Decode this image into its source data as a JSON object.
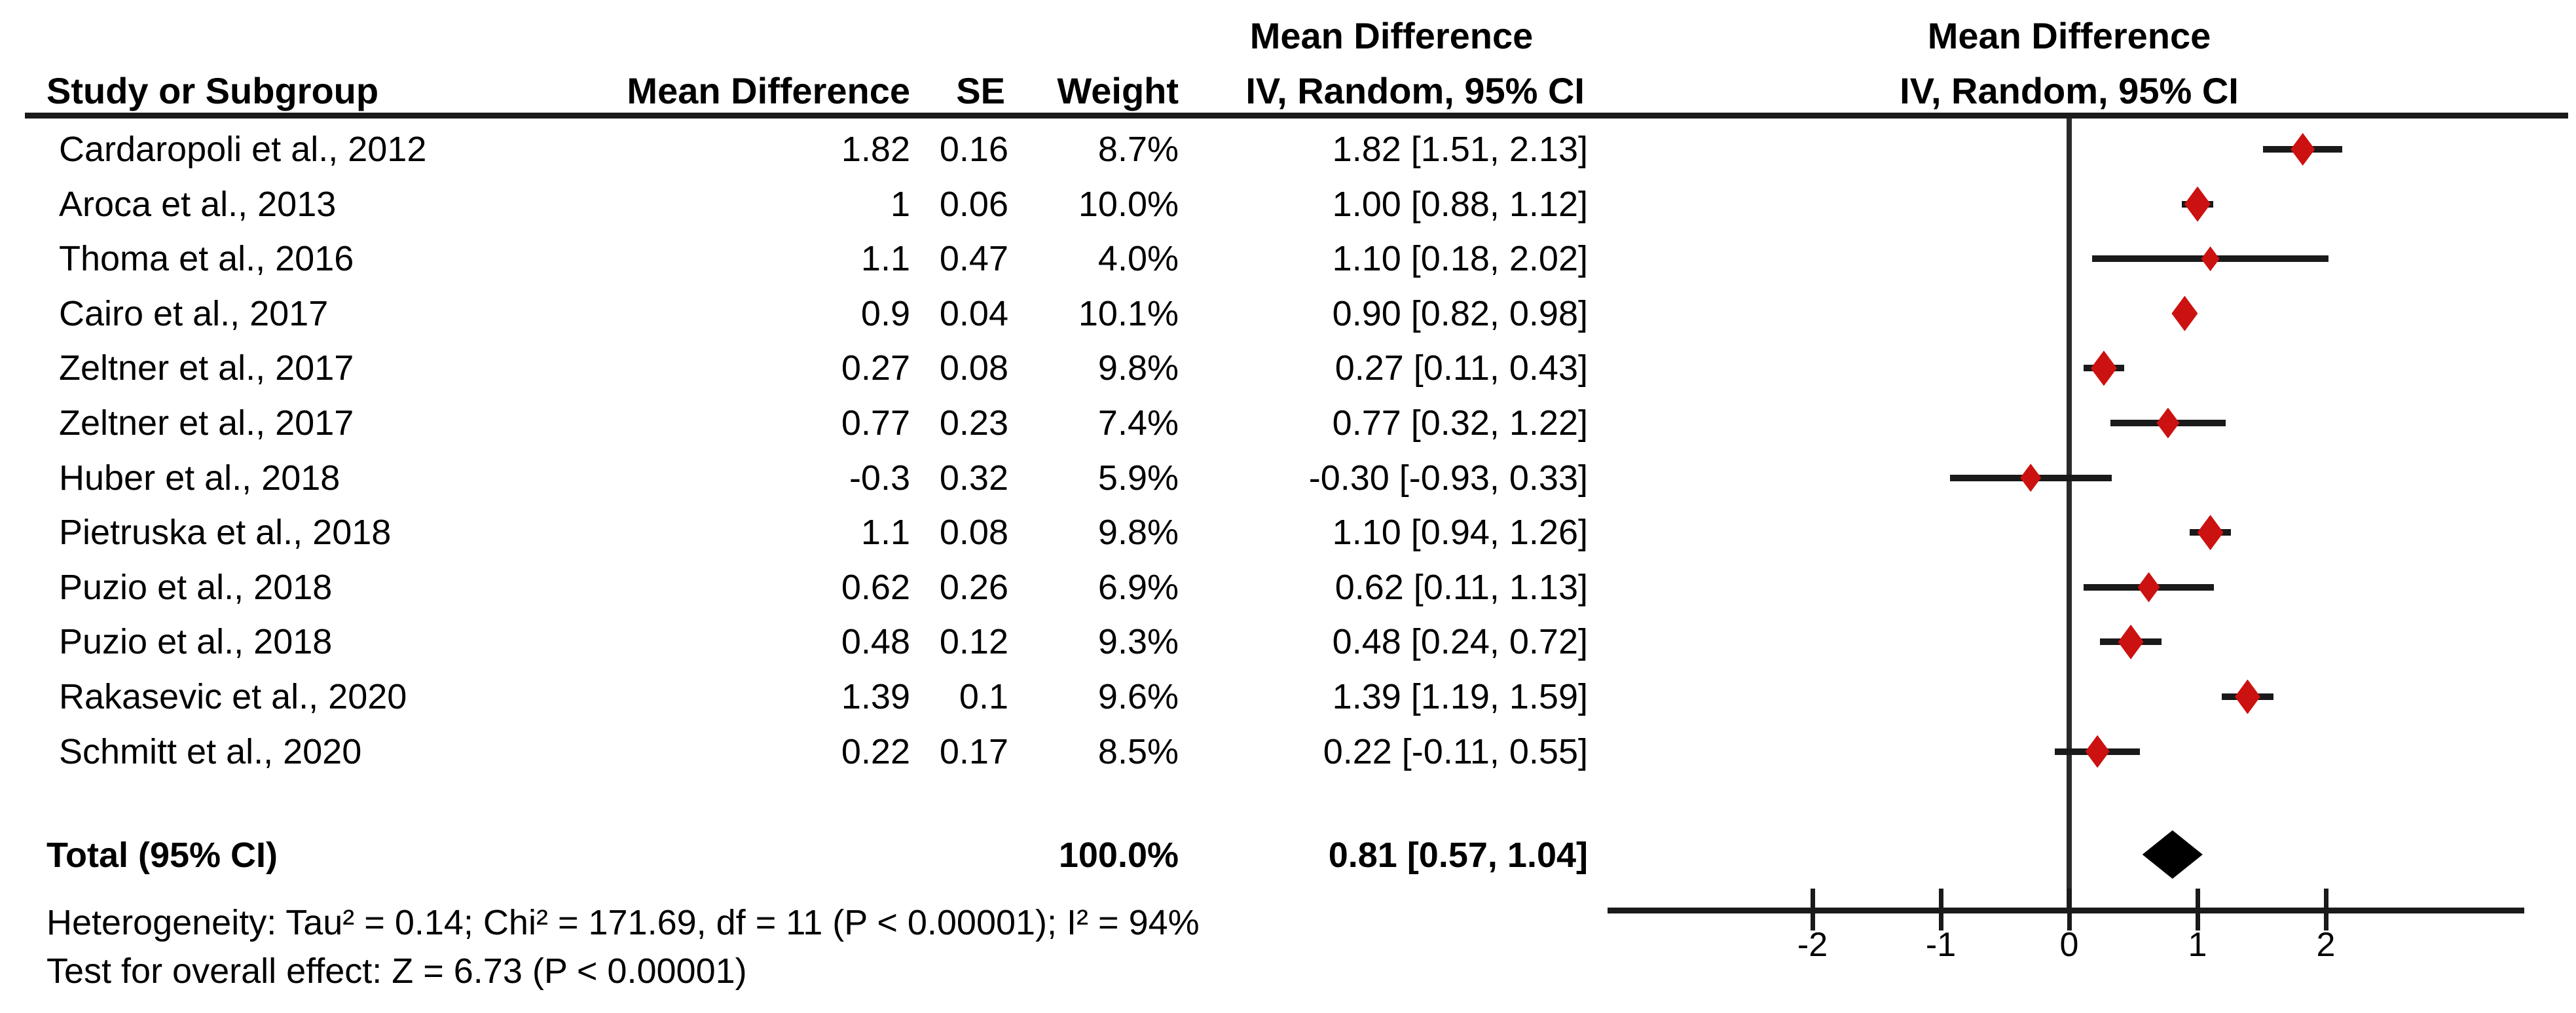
{
  "headers": {
    "col_effect_top": "Mean Difference",
    "study": "Study or Subgroup",
    "md": "Mean Difference",
    "se": "SE",
    "weight": "Weight",
    "ci": "IV, Random, 95% CI",
    "plot_top": "Mean Difference",
    "plot_ci": "IV, Random, 95% CI"
  },
  "chart_data": {
    "type": "forest",
    "effect_measure": "Mean Difference",
    "model": "IV, Random, 95% CI",
    "axis": {
      "min": -2,
      "max": 2,
      "ticks": [
        "-2",
        "-1",
        "0",
        "1",
        "2"
      ],
      "tick_values": [
        -2,
        -1,
        0,
        1,
        2
      ]
    },
    "studies": [
      {
        "study": "Cardaropoli et al., 2012",
        "md": "1.82",
        "se": "0.16",
        "weight": "8.7%",
        "ci_text": "1.82 [1.51, 2.13]",
        "mean": 1.82,
        "lo": 1.51,
        "hi": 2.13,
        "weight_pct": 8.7
      },
      {
        "study": "Aroca et al., 2013",
        "md": "1",
        "se": "0.06",
        "weight": "10.0%",
        "ci_text": "1.00 [0.88, 1.12]",
        "mean": 1.0,
        "lo": 0.88,
        "hi": 1.12,
        "weight_pct": 10.0
      },
      {
        "study": "Thoma et al., 2016",
        "md": "1.1",
        "se": "0.47",
        "weight": "4.0%",
        "ci_text": "1.10 [0.18, 2.02]",
        "mean": 1.1,
        "lo": 0.18,
        "hi": 2.02,
        "weight_pct": 4.0
      },
      {
        "study": "Cairo et al., 2017",
        "md": "0.9",
        "se": "0.04",
        "weight": "10.1%",
        "ci_text": "0.90 [0.82, 0.98]",
        "mean": 0.9,
        "lo": 0.82,
        "hi": 0.98,
        "weight_pct": 10.1
      },
      {
        "study": "Zeltner et al., 2017",
        "md": "0.27",
        "se": "0.08",
        "weight": "9.8%",
        "ci_text": "0.27 [0.11, 0.43]",
        "mean": 0.27,
        "lo": 0.11,
        "hi": 0.43,
        "weight_pct": 9.8
      },
      {
        "study": "Zeltner et al., 2017",
        "md": "0.77",
        "se": "0.23",
        "weight": "7.4%",
        "ci_text": "0.77 [0.32, 1.22]",
        "mean": 0.77,
        "lo": 0.32,
        "hi": 1.22,
        "weight_pct": 7.4
      },
      {
        "study": "Huber et al., 2018",
        "md": "-0.3",
        "se": "0.32",
        "weight": "5.9%",
        "ci_text": "-0.30 [-0.93, 0.33]",
        "mean": -0.3,
        "lo": -0.93,
        "hi": 0.33,
        "weight_pct": 5.9
      },
      {
        "study": "Pietruska et al., 2018",
        "md": "1.1",
        "se": "0.08",
        "weight": "9.8%",
        "ci_text": "1.10 [0.94, 1.26]",
        "mean": 1.1,
        "lo": 0.94,
        "hi": 1.26,
        "weight_pct": 9.8
      },
      {
        "study": "Puzio et al., 2018",
        "md": "0.62",
        "se": "0.26",
        "weight": "6.9%",
        "ci_text": "0.62 [0.11, 1.13]",
        "mean": 0.62,
        "lo": 0.11,
        "hi": 1.13,
        "weight_pct": 6.9
      },
      {
        "study": "Puzio et al., 2018",
        "md": "0.48",
        "se": "0.12",
        "weight": "9.3%",
        "ci_text": "0.48 [0.24, 0.72]",
        "mean": 0.48,
        "lo": 0.24,
        "hi": 0.72,
        "weight_pct": 9.3
      },
      {
        "study": "Rakasevic et al., 2020",
        "md": "1.39",
        "se": "0.1",
        "weight": "9.6%",
        "ci_text": "1.39 [1.19, 1.59]",
        "mean": 1.39,
        "lo": 1.19,
        "hi": 1.59,
        "weight_pct": 9.6
      },
      {
        "study": "Schmitt et al., 2020",
        "md": "0.22",
        "se": "0.17",
        "weight": "8.5%",
        "ci_text": "0.22 [-0.11, 0.55]",
        "mean": 0.22,
        "lo": -0.11,
        "hi": 0.55,
        "weight_pct": 8.5
      }
    ],
    "total": {
      "label": "Total (95% CI)",
      "weight": "100.0%",
      "ci_text": "0.81 [0.57, 1.04]",
      "mean": 0.81,
      "lo": 0.57,
      "hi": 1.04
    },
    "footnotes": {
      "heterogeneity": "Heterogeneity: Tau² = 0.14; Chi² = 171.69, df = 11 (P < 0.00001); I² = 94%",
      "overall_effect": "Test for overall effect: Z = 6.73 (P < 0.00001)"
    }
  },
  "colors": {
    "marker_red": "#cc1111",
    "ci_line": "#1a1a1a",
    "axis": "#1a1a1a",
    "total_diamond": "#000000",
    "text": "#000000"
  }
}
